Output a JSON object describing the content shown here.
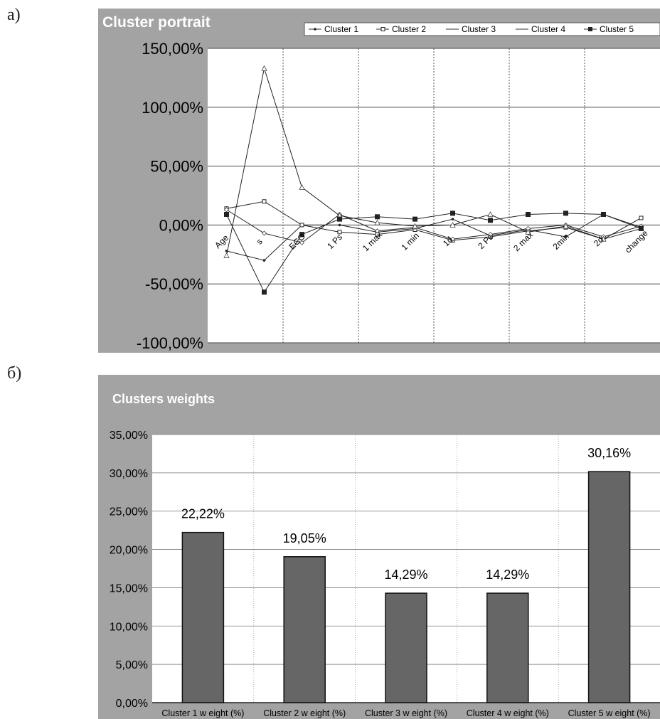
{
  "labels": {
    "a": "а)",
    "b": "б)"
  },
  "colors": {
    "frame": "#a3a3a3",
    "plot_bg": "#ffffff",
    "bar": "#666666",
    "line": "#222222"
  },
  "chart_data": [
    {
      "type": "line",
      "title": "Cluster portrait",
      "categories": [
        "Age",
        "s",
        "ECG",
        "1 Ps",
        "1 max",
        "1 min",
        "1d",
        "2 Ps",
        "2 max",
        "2min",
        "2d",
        "change"
      ],
      "ylim": [
        -1.0,
        1.5
      ],
      "yticks": [
        "150,00%",
        "100,00%",
        "50,00%",
        "0,00%",
        "-50,00%",
        "-100,00%"
      ],
      "grid": "vertical dotted lines, horizontal lines at y ticks",
      "legend_position": "top-right",
      "series": [
        {
          "name": "Cluster 1",
          "marker": "dot",
          "values": [
            -0.22,
            -0.3,
            0.0,
            0.0,
            -0.06,
            -0.03,
            0.05,
            -0.09,
            -0.04,
            -0.1,
            0.09,
            -0.02
          ]
        },
        {
          "name": "Cluster 2",
          "marker": "square",
          "values": [
            0.14,
            0.2,
            0.0,
            -0.06,
            -0.08,
            -0.04,
            -0.13,
            -0.1,
            -0.05,
            -0.02,
            -0.12,
            0.06
          ]
        },
        {
          "name": "Cluster 3",
          "marker": "diamond",
          "values": [
            0.13,
            -0.07,
            -0.15,
            0.09,
            -0.05,
            -0.02,
            -0.12,
            -0.08,
            -0.03,
            0.0,
            -0.1,
            -0.01
          ]
        },
        {
          "name": "Cluster 4",
          "marker": "triangle",
          "values": [
            -0.26,
            1.33,
            0.32,
            0.08,
            0.02,
            -0.01,
            0.0,
            0.09,
            -0.06,
            -0.01,
            -0.12,
            -0.03
          ]
        },
        {
          "name": "Cluster 5",
          "marker": "square-filled",
          "values": [
            0.09,
            -0.57,
            -0.08,
            0.05,
            0.07,
            0.05,
            0.1,
            0.04,
            0.09,
            0.1,
            0.09,
            -0.03
          ]
        }
      ]
    },
    {
      "type": "bar",
      "title": "Clusters weights",
      "categories": [
        "Cluster 1 w eight (%)",
        "Cluster 2 w eight (%)",
        "Cluster 3 w eight (%)",
        "Cluster 4 w eight (%)",
        "Cluster 5 w eight (%)"
      ],
      "values": [
        0.2222,
        0.1905,
        0.1429,
        0.1429,
        0.3016
      ],
      "data_labels": [
        "22,22%",
        "19,05%",
        "14,29%",
        "14,29%",
        "30,16%"
      ],
      "ylim": [
        0,
        0.35
      ],
      "yticks": [
        "35,00%",
        "30,00%",
        "25,00%",
        "20,00%",
        "15,00%",
        "10,00%",
        "5,00%",
        "0,00%"
      ],
      "grid": "horizontal lines, vertical dotted category separators"
    }
  ]
}
